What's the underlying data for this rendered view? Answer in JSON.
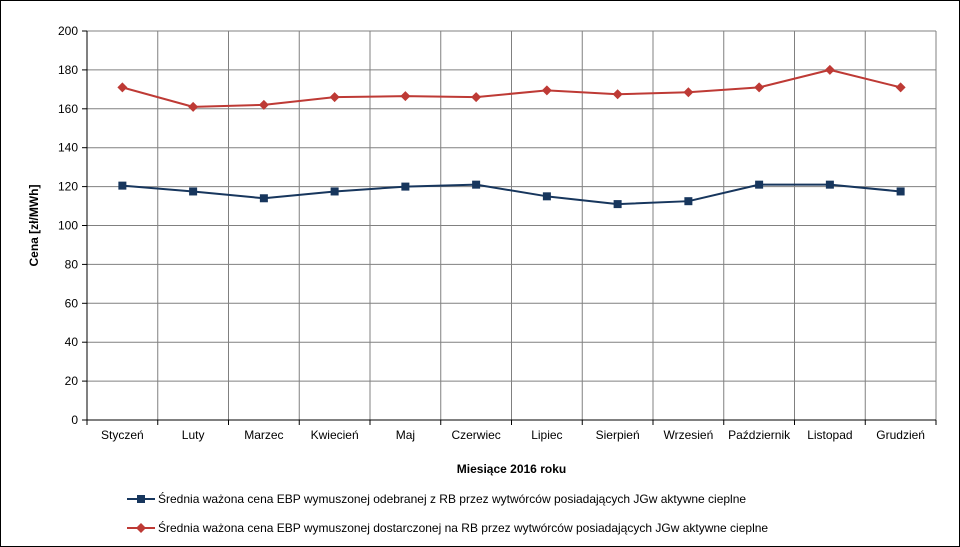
{
  "chart_data": {
    "type": "line",
    "title": "",
    "xlabel": "Miesiące 2016  roku",
    "ylabel": "Cena [zł/MWh]",
    "ylim": [
      0,
      200
    ],
    "yticks": [
      0,
      20,
      40,
      60,
      80,
      100,
      120,
      140,
      160,
      180,
      200
    ],
    "grid": true,
    "legend": "bottom",
    "categories": [
      "Styczeń",
      "Luty",
      "Marzec",
      "Kwiecień",
      "Maj",
      "Czerwiec",
      "Lipiec",
      "Sierpień",
      "Wrzesień",
      "Październik",
      "Listopad",
      "Grudzień"
    ],
    "series": [
      {
        "name": "Średnia ważona cena EBP wymuszonej odebranej z RB przez wytwórców posiadających JGw aktywne cieplne",
        "color": "#17365d",
        "marker": "square",
        "values": [
          120.5,
          117.5,
          114,
          117.5,
          120,
          121,
          115,
          111,
          112.5,
          121,
          121,
          117.5
        ]
      },
      {
        "name": "Średnia ważona cena EBP wymuszonej dostarczonej na RB przez wytwórców posiadających JGw aktywne cieplne",
        "color": "#be3a35",
        "marker": "diamond",
        "values": [
          171,
          161,
          162,
          166,
          166.5,
          166,
          169.5,
          167.5,
          168.5,
          171,
          180,
          171
        ]
      }
    ]
  }
}
